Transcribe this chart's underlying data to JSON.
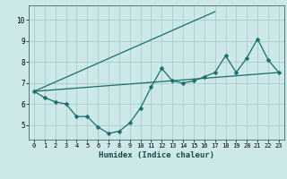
{
  "xlabel": "Humidex (Indice chaleur)",
  "bg_color": "#cce8e8",
  "grid_color": "#aacccc",
  "line_color": "#1a6e6e",
  "xlim": [
    -0.5,
    23.5
  ],
  "ylim": [
    4.3,
    10.7
  ],
  "xticks": [
    0,
    1,
    2,
    3,
    4,
    5,
    6,
    7,
    8,
    9,
    10,
    11,
    12,
    13,
    14,
    15,
    16,
    17,
    18,
    19,
    20,
    21,
    22,
    23
  ],
  "yticks": [
    5,
    6,
    7,
    8,
    9,
    10
  ],
  "line1_x": [
    0,
    1,
    2,
    3,
    4,
    5,
    6,
    7,
    8,
    9,
    10,
    11,
    12,
    13,
    14,
    15,
    16,
    17,
    18,
    19,
    20,
    21,
    22,
    23
  ],
  "line1_y": [
    6.6,
    6.3,
    6.1,
    6.0,
    5.4,
    5.4,
    4.9,
    4.6,
    4.7,
    5.1,
    5.8,
    6.8,
    7.7,
    7.1,
    7.0,
    7.1,
    7.3,
    7.5,
    8.3,
    7.5,
    8.2,
    9.1,
    8.1,
    7.5
  ],
  "line2_x": [
    0,
    23
  ],
  "line2_y": [
    6.6,
    7.5
  ],
  "line3_x": [
    0,
    17
  ],
  "line3_y": [
    6.6,
    10.4
  ]
}
